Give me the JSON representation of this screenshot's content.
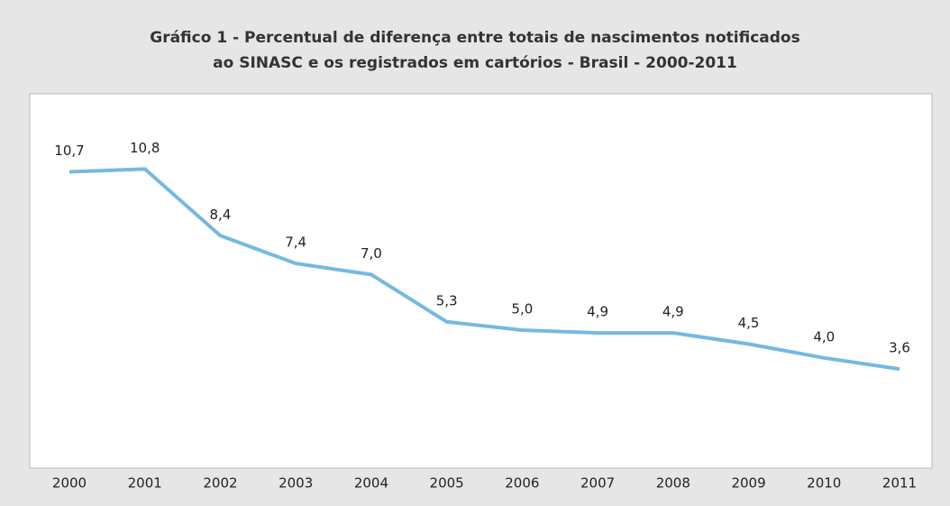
{
  "chart_data": {
    "type": "line",
    "title": [
      "Gráfico 1 - Percentual de diferença entre totais de nascimentos notificados",
      "ao SINASC e os registrados em cartórios - Brasil - 2000-2011"
    ],
    "categories": [
      "2000",
      "2001",
      "2002",
      "2003",
      "2004",
      "2005",
      "2006",
      "2007",
      "2008",
      "2009",
      "2010",
      "2011"
    ],
    "series": [
      {
        "color": "#74b9e0",
        "values": [
          10.7,
          10.8,
          8.4,
          7.4,
          7.0,
          5.3,
          5.0,
          4.9,
          4.9,
          4.5,
          4.0,
          3.6
        ],
        "value_labels": [
          "10,7",
          "10,8",
          "8,4",
          "7,4",
          "7,0",
          "5,3",
          "5,0",
          "4,9",
          "4,9",
          "4,5",
          "4,0",
          "3,6"
        ]
      }
    ]
  }
}
